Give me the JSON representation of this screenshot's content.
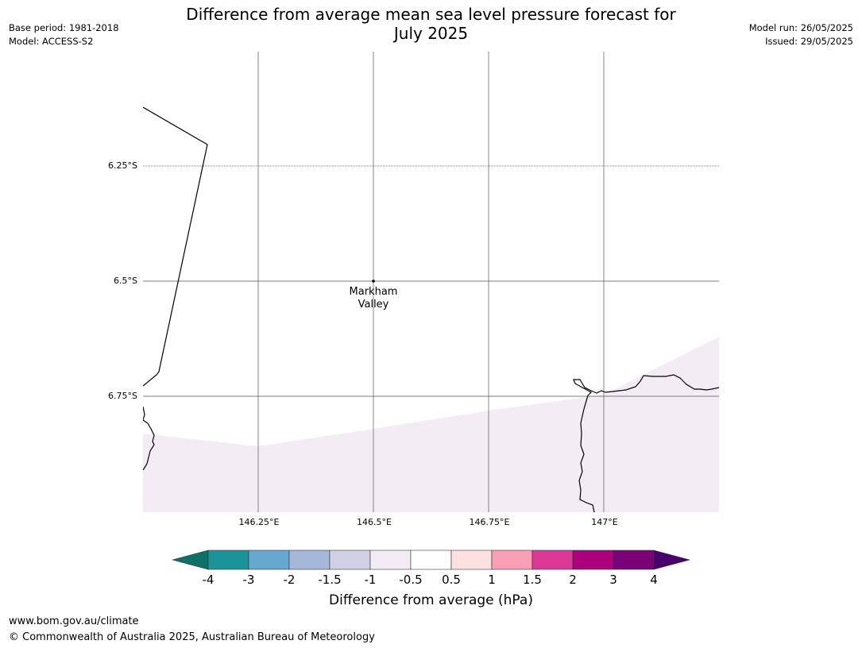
{
  "title": {
    "line1": "Difference from average mean sea level pressure forecast for",
    "line2": "July 2025"
  },
  "meta": {
    "base_period": "Base period: 1981-2018",
    "model": "Model: ACCESS-S2",
    "model_run": "Model run: 26/05/2025",
    "issued": "Issued: 29/05/2025"
  },
  "map": {
    "lat_labels": [
      "6.25°S",
      "6.5°S",
      "6.75°S"
    ],
    "lon_labels": [
      "146.25°E",
      "146.5°E",
      "146.75°E",
      "147°E"
    ],
    "place": {
      "name_line1": "Markham",
      "name_line2": "Valley",
      "lon": 146.5,
      "lat": -6.5
    },
    "shaded_category": "-1 to -0.5 hPa",
    "shaded_color": "#f3ecf5",
    "coastline_color": "#000000",
    "gridline_color": "#555555"
  },
  "colorbar": {
    "ticks": [
      "-4",
      "-3",
      "-2",
      "-1.5",
      "-1",
      "-0.5",
      "0.5",
      "1",
      "1.5",
      "2",
      "3",
      "4"
    ],
    "colors": [
      "#0f7068",
      "#1a9399",
      "#66a8d0",
      "#a5b8da",
      "#d0cfe4",
      "#f3ecf5",
      "#ffffff",
      "#fde0e0",
      "#f89fb6",
      "#dc3797",
      "#ad007d",
      "#7a0177",
      "#4a006a"
    ],
    "label": "Difference from average (hPa)"
  },
  "footer": {
    "url": "www.bom.gov.au/climate",
    "copyright": "© Commonwealth of Australia 2025, Australian Bureau of Meteorology"
  }
}
